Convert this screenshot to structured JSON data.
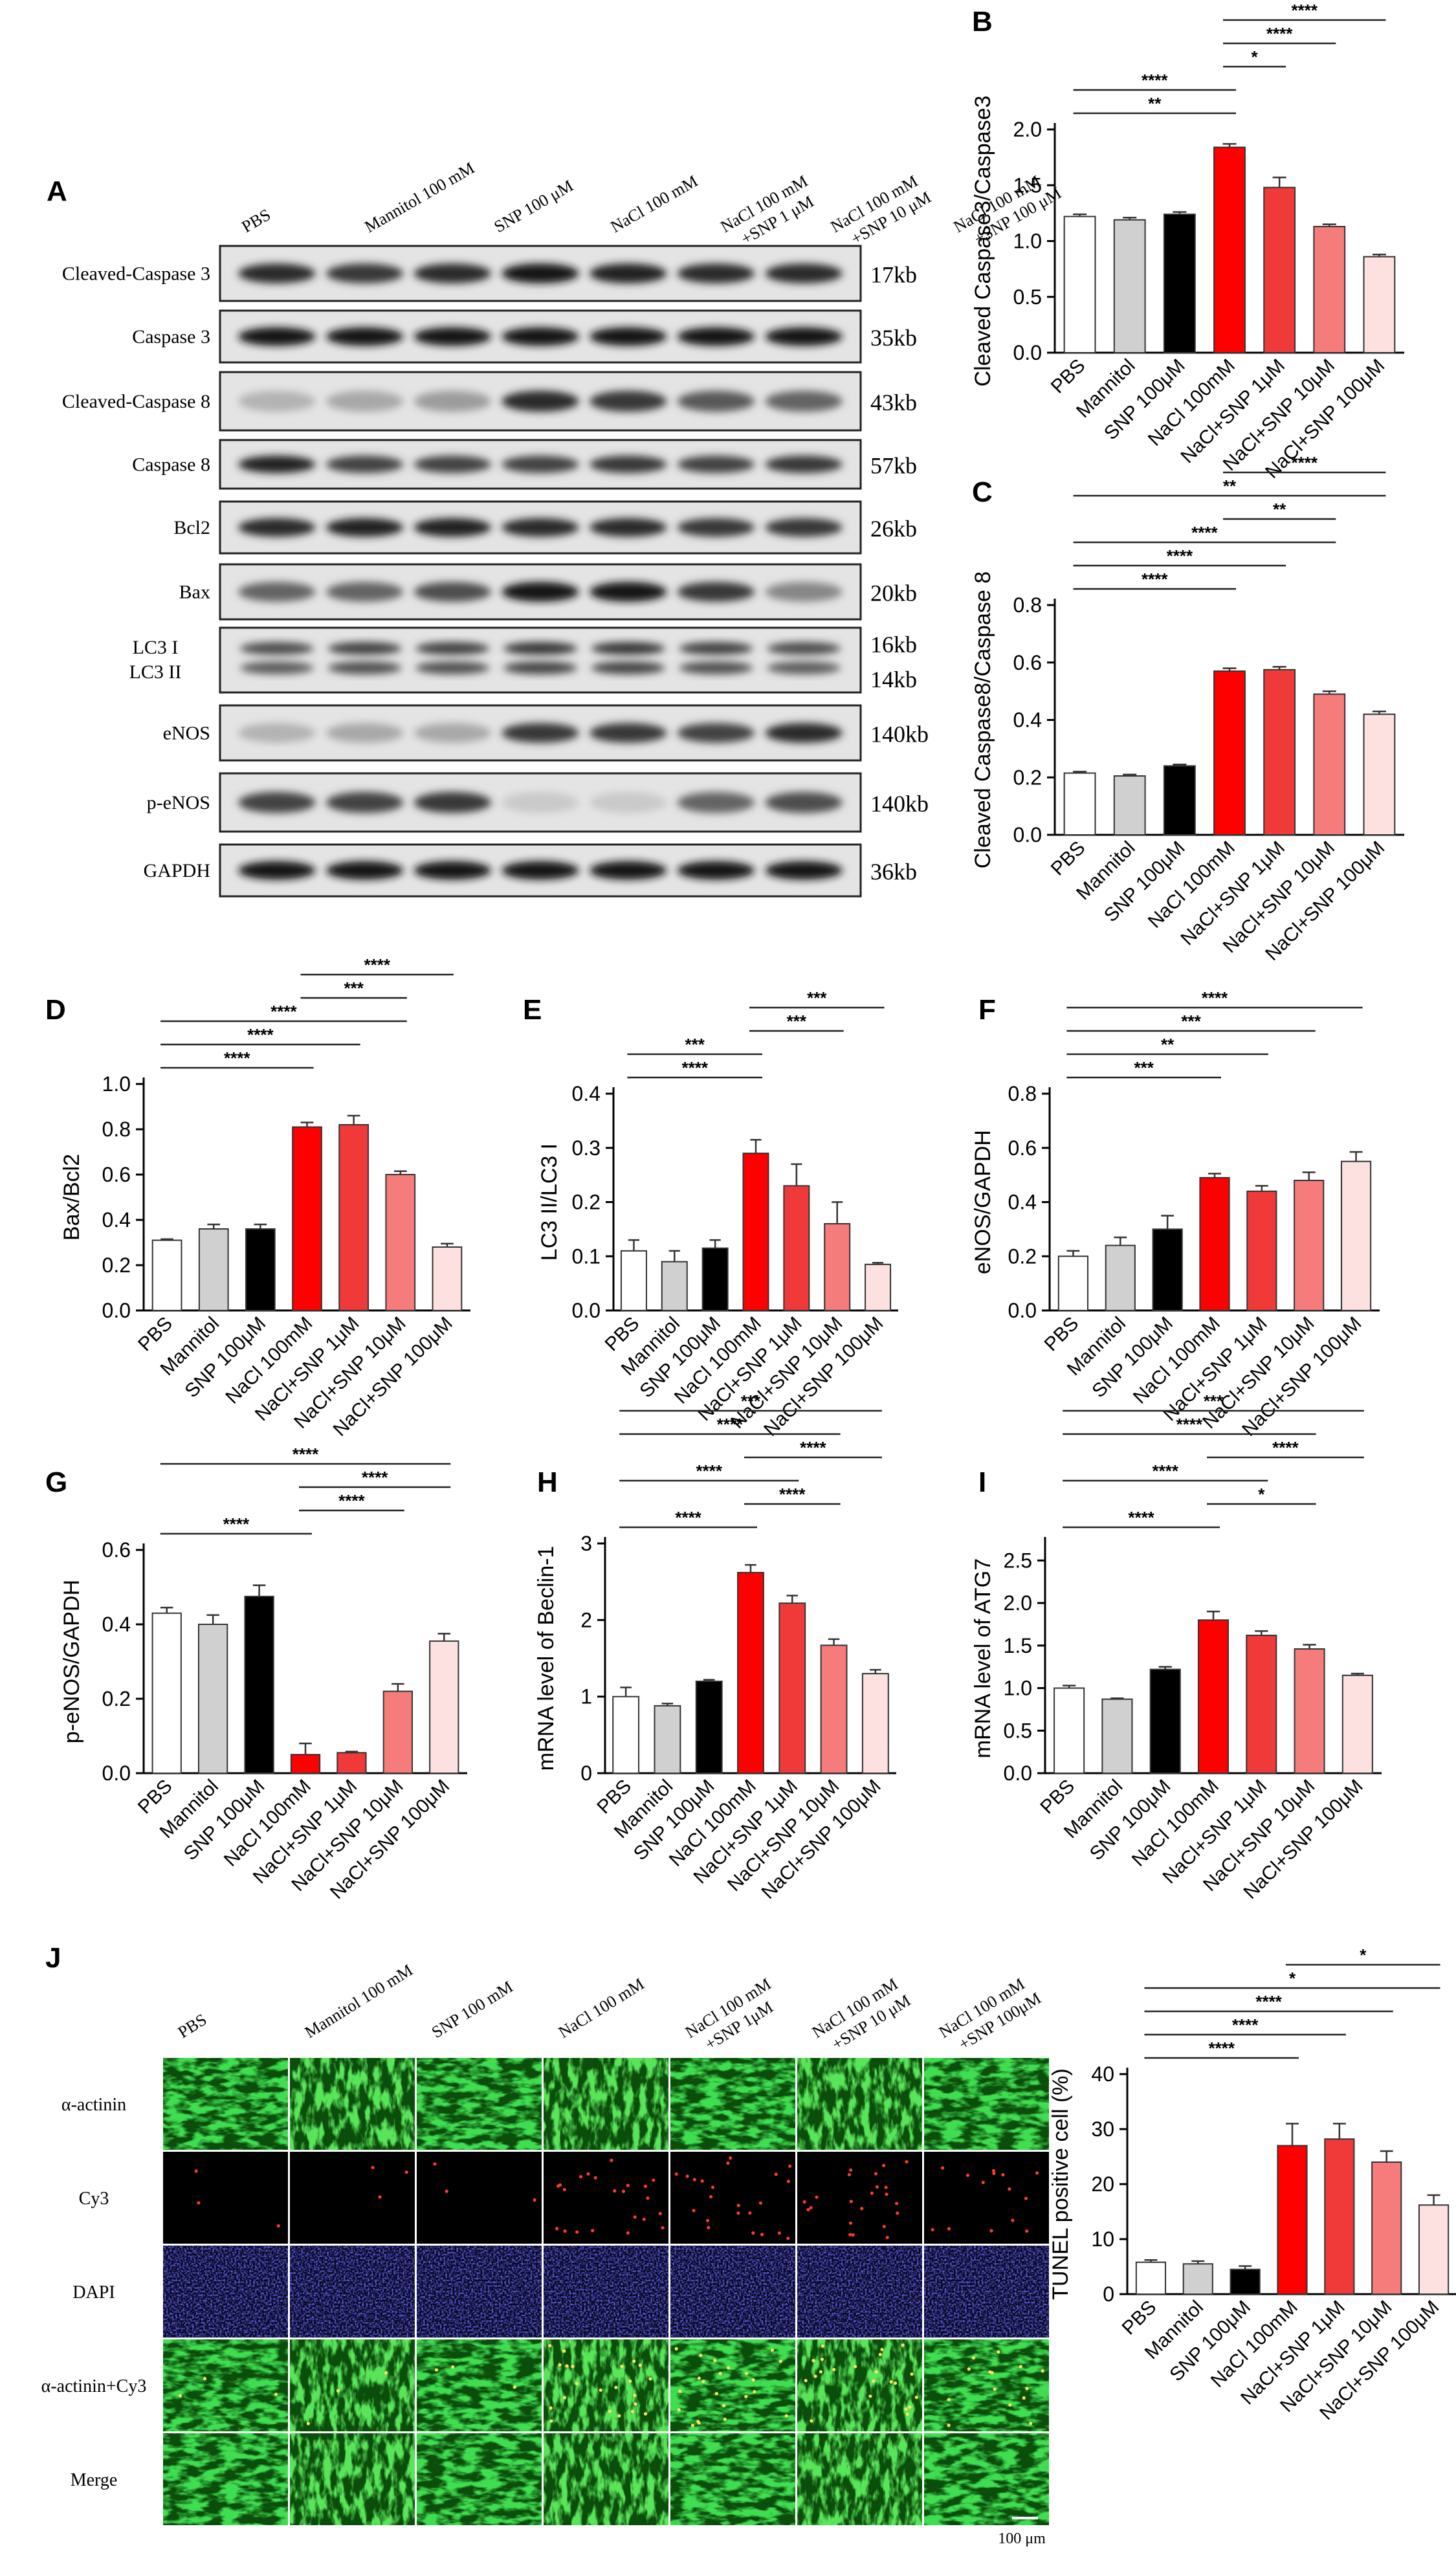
{
  "colors": {
    "PBS": "#ffffff",
    "Mannitol": "#d0d0d0",
    "SNP 100μM": "#000000",
    "NaCl 100mM": "#ff0000",
    "NaCl+SNP 1μM": "#f03a3a",
    "NaCl+SNP 10μM": "#f67c7c",
    "NaCl+SNP 100μM": "#fde0e0",
    "micro_green": "#17b417",
    "micro_red": "#ff3a2a",
    "micro_blue": "#1a1a8a"
  },
  "icons": [
    "western-blot-band",
    "fluorescence-micrograph"
  ],
  "blot": {
    "panel_label": "A",
    "lanes": [
      "PBS",
      "Mannitol 100 mM",
      "SNP 100 μM",
      "NaCl 100 mM",
      "NaCl 100 mM +SNP 1 μM",
      "NaCl 100 mM +SNP 10 μM",
      "NaCl 100 mM +SNP 100 μM"
    ],
    "rows": [
      {
        "label": "Cleaved-Caspase 3",
        "size": "17kb",
        "intensity": [
          0.85,
          0.8,
          0.85,
          0.95,
          0.9,
          0.85,
          0.85
        ]
      },
      {
        "label": "Caspase 3",
        "size": "35kb",
        "intensity": [
          0.95,
          0.95,
          0.95,
          0.95,
          0.95,
          0.95,
          0.95
        ]
      },
      {
        "label": "Cleaved-Caspase 8",
        "size": "43kb",
        "intensity": [
          0.25,
          0.3,
          0.35,
          0.85,
          0.8,
          0.65,
          0.6
        ]
      },
      {
        "label": "Caspase 8",
        "size": "57kb",
        "intensity": [
          0.9,
          0.75,
          0.75,
          0.75,
          0.8,
          0.75,
          0.8
        ]
      },
      {
        "label": "Bcl2",
        "size": "26kb",
        "intensity": [
          0.85,
          0.9,
          0.9,
          0.85,
          0.85,
          0.8,
          0.8
        ]
      },
      {
        "label": "Bax",
        "size": "20kb",
        "intensity": [
          0.6,
          0.6,
          0.7,
          0.95,
          0.95,
          0.8,
          0.45
        ]
      },
      {
        "label": "LC3 I",
        "label2": "LC3 II",
        "size": "16kb",
        "size2": "14kb",
        "intensity": [
          0.7,
          0.75,
          0.75,
          0.8,
          0.8,
          0.75,
          0.7
        ]
      },
      {
        "label": "eNOS",
        "size": "140kb",
        "intensity": [
          0.25,
          0.3,
          0.3,
          0.8,
          0.8,
          0.75,
          0.85
        ]
      },
      {
        "label": "p-eNOS",
        "size": "140kb",
        "intensity": [
          0.75,
          0.75,
          0.8,
          0.15,
          0.15,
          0.6,
          0.7
        ]
      },
      {
        "label": "GAPDH",
        "size": "36kb",
        "intensity": [
          0.95,
          0.95,
          0.95,
          0.95,
          0.95,
          0.95,
          0.95
        ]
      }
    ]
  },
  "chart_data": [
    {
      "id": "B",
      "type": "bar",
      "categories": [
        "PBS",
        "Mannitol",
        "SNP 100μM",
        "NaCl 100mM",
        "NaCl+SNP 1μM",
        "NaCl+SNP 10μM",
        "NaCl+SNP 100μM"
      ],
      "values": [
        1.22,
        1.19,
        1.24,
        1.84,
        1.48,
        1.13,
        0.86
      ],
      "errors": [
        0.02,
        0.02,
        0.02,
        0.03,
        0.09,
        0.02,
        0.02
      ],
      "ylabel": "Cleaved Caspase3/Caspase3",
      "ylim": [
        0,
        2.0
      ],
      "yticks": [
        "0.0",
        "0.5",
        "1.0",
        "1.5",
        "2.0"
      ],
      "sig": [
        {
          "from": 0,
          "to": 3,
          "label": "**"
        },
        {
          "from": 0,
          "to": 3,
          "label": "****"
        },
        {
          "from": 3,
          "to": 4,
          "label": "*"
        },
        {
          "from": 3,
          "to": 5,
          "label": "****"
        },
        {
          "from": 3,
          "to": 6,
          "label": "****"
        }
      ]
    },
    {
      "id": "C",
      "type": "bar",
      "categories": [
        "PBS",
        "Mannitol",
        "SNP 100μM",
        "NaCl 100mM",
        "NaCl+SNP 1μM",
        "NaCl+SNP 10μM",
        "NaCl+SNP 100μM"
      ],
      "values": [
        0.215,
        0.205,
        0.24,
        0.57,
        0.575,
        0.49,
        0.42
      ],
      "errors": [
        0.005,
        0.005,
        0.005,
        0.01,
        0.01,
        0.01,
        0.01
      ],
      "ylabel": "Cleaved Caspase8/Caspase 8",
      "ylim": [
        0,
        0.8
      ],
      "yticks": [
        "0.0",
        "0.2",
        "0.4",
        "0.6",
        "0.8"
      ],
      "sig": [
        {
          "from": 0,
          "to": 3,
          "label": "****"
        },
        {
          "from": 0,
          "to": 4,
          "label": "****"
        },
        {
          "from": 0,
          "to": 5,
          "label": "****"
        },
        {
          "from": 3,
          "to": 5,
          "label": "**"
        },
        {
          "from": 0,
          "to": 6,
          "label": "**"
        },
        {
          "from": 3,
          "to": 6,
          "label": "****"
        }
      ]
    },
    {
      "id": "D",
      "type": "bar",
      "categories": [
        "PBS",
        "Mannitol",
        "SNP 100μM",
        "NaCl 100mM",
        "NaCl+SNP 1μM",
        "NaCl+SNP 10μM",
        "NaCl+SNP 100μM"
      ],
      "values": [
        0.31,
        0.36,
        0.36,
        0.81,
        0.82,
        0.6,
        0.28
      ],
      "errors": [
        0.005,
        0.02,
        0.02,
        0.02,
        0.04,
        0.015,
        0.015
      ],
      "ylabel": "Bax/Bcl2",
      "ylim": [
        0,
        1.0
      ],
      "yticks": [
        "0.0",
        "0.2",
        "0.4",
        "0.6",
        "0.8",
        "1.0"
      ],
      "sig": [
        {
          "from": 0,
          "to": 3,
          "label": "****"
        },
        {
          "from": 0,
          "to": 4,
          "label": "****"
        },
        {
          "from": 0,
          "to": 5,
          "label": "****"
        },
        {
          "from": 3,
          "to": 5,
          "label": "***"
        },
        {
          "from": 3,
          "to": 6,
          "label": "****"
        }
      ]
    },
    {
      "id": "E",
      "type": "bar",
      "categories": [
        "PBS",
        "Mannitol",
        "SNP 100μM",
        "NaCl 100mM",
        "NaCl+SNP 1μM",
        "NaCl+SNP 10μM",
        "NaCl+SNP 100μM"
      ],
      "values": [
        0.11,
        0.09,
        0.115,
        0.29,
        0.23,
        0.16,
        0.085
      ],
      "errors": [
        0.02,
        0.02,
        0.015,
        0.025,
        0.04,
        0.04,
        0.003
      ],
      "ylabel": "LC3 II/LC3 I",
      "ylim": [
        0,
        0.4
      ],
      "yticks": [
        "0.0",
        "0.1",
        "0.2",
        "0.3",
        "0.4"
      ],
      "sig": [
        {
          "from": 0,
          "to": 3,
          "label": "****"
        },
        {
          "from": 0,
          "to": 3,
          "label": "***"
        },
        {
          "from": 3,
          "to": 5,
          "label": "***"
        },
        {
          "from": 3,
          "to": 6,
          "label": "***"
        }
      ]
    },
    {
      "id": "F",
      "type": "bar",
      "categories": [
        "PBS",
        "Mannitol",
        "SNP 100μM",
        "NaCl 100mM",
        "NaCl+SNP 1μM",
        "NaCl+SNP 10μM",
        "NaCl+SNP 100μM"
      ],
      "values": [
        0.2,
        0.24,
        0.3,
        0.49,
        0.44,
        0.48,
        0.55
      ],
      "errors": [
        0.02,
        0.03,
        0.05,
        0.015,
        0.02,
        0.03,
        0.035
      ],
      "ylabel": "eNOS/GAPDH",
      "ylim": [
        0,
        0.8
      ],
      "yticks": [
        "0.0",
        "0.2",
        "0.4",
        "0.6",
        "0.8"
      ],
      "sig": [
        {
          "from": 0,
          "to": 3,
          "label": "***"
        },
        {
          "from": 0,
          "to": 4,
          "label": "**"
        },
        {
          "from": 0,
          "to": 5,
          "label": "***"
        },
        {
          "from": 0,
          "to": 6,
          "label": "****"
        }
      ]
    },
    {
      "id": "G",
      "type": "bar",
      "categories": [
        "PBS",
        "Mannitol",
        "SNP 100μM",
        "NaCl 100mM",
        "NaCl+SNP 1μM",
        "NaCl+SNP 10μM",
        "NaCl+SNP 100μM"
      ],
      "values": [
        0.43,
        0.4,
        0.475,
        0.05,
        0.055,
        0.22,
        0.355
      ],
      "errors": [
        0.015,
        0.025,
        0.03,
        0.03,
        0.003,
        0.02,
        0.02
      ],
      "ylabel": "p-eNOS/GAPDH",
      "ylim": [
        0,
        0.6
      ],
      "yticks": [
        "0.0",
        "0.2",
        "0.4",
        "0.6"
      ],
      "sig": [
        {
          "from": 0,
          "to": 3,
          "label": "****"
        },
        {
          "from": 3,
          "to": 5,
          "label": "****"
        },
        {
          "from": 3,
          "to": 6,
          "label": "****"
        },
        {
          "from": 0,
          "to": 6,
          "label": "****"
        }
      ]
    },
    {
      "id": "H",
      "type": "bar",
      "categories": [
        "PBS",
        "Mannitol",
        "SNP 100μM",
        "NaCl 100mM",
        "NaCl+SNP 1μM",
        "NaCl+SNP 10μM",
        "NaCl+SNP 100μM"
      ],
      "values": [
        1.0,
        0.88,
        1.2,
        2.62,
        2.22,
        1.67,
        1.3
      ],
      "errors": [
        0.12,
        0.03,
        0.02,
        0.1,
        0.1,
        0.08,
        0.05
      ],
      "ylabel": "mRNA level of Beclin-1",
      "ylim": [
        0,
        3
      ],
      "yticks": [
        "0",
        "1",
        "2",
        "3"
      ],
      "sig": [
        {
          "from": 0,
          "to": 3,
          "label": "****"
        },
        {
          "from": 3,
          "to": 5,
          "label": "****"
        },
        {
          "from": 0,
          "to": 4,
          "label": "****"
        },
        {
          "from": 3,
          "to": 6,
          "label": "****"
        },
        {
          "from": 0,
          "to": 5,
          "label": "****"
        },
        {
          "from": 0,
          "to": 6,
          "label": "***"
        }
      ]
    },
    {
      "id": "I",
      "type": "bar",
      "categories": [
        "PBS",
        "Mannitol",
        "SNP 100μM",
        "NaCl 100mM",
        "NaCl+SNP 1μM",
        "NaCl+SNP 10μM",
        "NaCl+SNP 100μM"
      ],
      "values": [
        1.0,
        0.87,
        1.22,
        1.8,
        1.62,
        1.46,
        1.15
      ],
      "errors": [
        0.03,
        0.01,
        0.03,
        0.1,
        0.05,
        0.05,
        0.02
      ],
      "ylabel": "mRNA level of ATG7",
      "ylim": [
        0,
        2.7
      ],
      "yticks": [
        "0.0",
        "0.5",
        "1.0",
        "1.5",
        "2.0",
        "2.5"
      ],
      "sig": [
        {
          "from": 0,
          "to": 3,
          "label": "****"
        },
        {
          "from": 3,
          "to": 5,
          "label": "*"
        },
        {
          "from": 0,
          "to": 4,
          "label": "****"
        },
        {
          "from": 3,
          "to": 6,
          "label": "****"
        },
        {
          "from": 0,
          "to": 5,
          "label": "****"
        },
        {
          "from": 0,
          "to": 6,
          "label": "***"
        }
      ]
    },
    {
      "id": "J2",
      "type": "bar",
      "categories": [
        "PBS",
        "Mannitol",
        "SNP 100μM",
        "NaCl 100mM",
        "NaCl+SNP 1μM",
        "NaCl+SNP 10μM",
        "NaCl+SNP 100μM"
      ],
      "values": [
        5.8,
        5.5,
        4.5,
        27.0,
        28.2,
        24.0,
        16.2
      ],
      "errors": [
        0.4,
        0.5,
        0.6,
        4.0,
        2.8,
        2.0,
        1.8
      ],
      "ylabel": "TUNEL positive cell (%)",
      "ylim": [
        0,
        40
      ],
      "yticks": [
        "0",
        "10",
        "20",
        "30",
        "40"
      ],
      "sig": [
        {
          "from": 0,
          "to": 3,
          "label": "****"
        },
        {
          "from": 0,
          "to": 4,
          "label": "****"
        },
        {
          "from": 0,
          "to": 5,
          "label": "****"
        },
        {
          "from": 0,
          "to": 6,
          "label": "*"
        },
        {
          "from": 3,
          "to": 6,
          "label": "*"
        }
      ]
    }
  ],
  "micro": {
    "panel_label": "J",
    "columns": [
      "PBS",
      "Mannitol 100 mM",
      "SNP 100 mM",
      "NaCl 100 mM",
      "NaCl 100 mM +SNP 1μM",
      "NaCl 100 mM +SNP 10 μM",
      "NaCl 100 mM +SNP 100μM"
    ],
    "rows": [
      "α-actinin",
      "Cy3",
      "DAPI",
      "α-actinin+Cy3",
      "Merge"
    ],
    "scale_bar": "100 μm"
  }
}
